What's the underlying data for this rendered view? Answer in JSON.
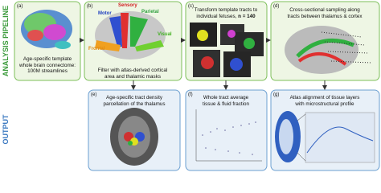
{
  "pipeline_label": "ANALYSIS PIPELINE",
  "output_label": "OUTPUT",
  "panels": [
    {
      "letter": "(a)",
      "lines": [
        "Age-specific template",
        "whole brain connectome:",
        "100M streamlines"
      ]
    },
    {
      "letter": "(b)",
      "lines": [
        "Filter with atlas-derived cortical",
        "area and thalamic masks"
      ],
      "regions": [
        "Motor",
        "Sensory",
        "Parietal",
        "Frontal",
        "Visual"
      ]
    },
    {
      "letter": "(c)",
      "lines": [
        "Transform template tracts to",
        "individual fetuses, "
      ],
      "bold": "n = 140"
    },
    {
      "letter": "(d)",
      "lines": [
        "Cross-sectional sampling along",
        "tracts between thalamus & cortex"
      ]
    },
    {
      "letter": "(e)",
      "lines": [
        "Age-specific tract density",
        "parcellation of the thalamus"
      ]
    },
    {
      "letter": "(f)",
      "lines": [
        "Whole tract average",
        "tissue & fluid fraction"
      ]
    },
    {
      "letter": "(g)",
      "lines": [
        "Atlas alignment of tissue layers",
        "with microstructural profile"
      ]
    }
  ]
}
